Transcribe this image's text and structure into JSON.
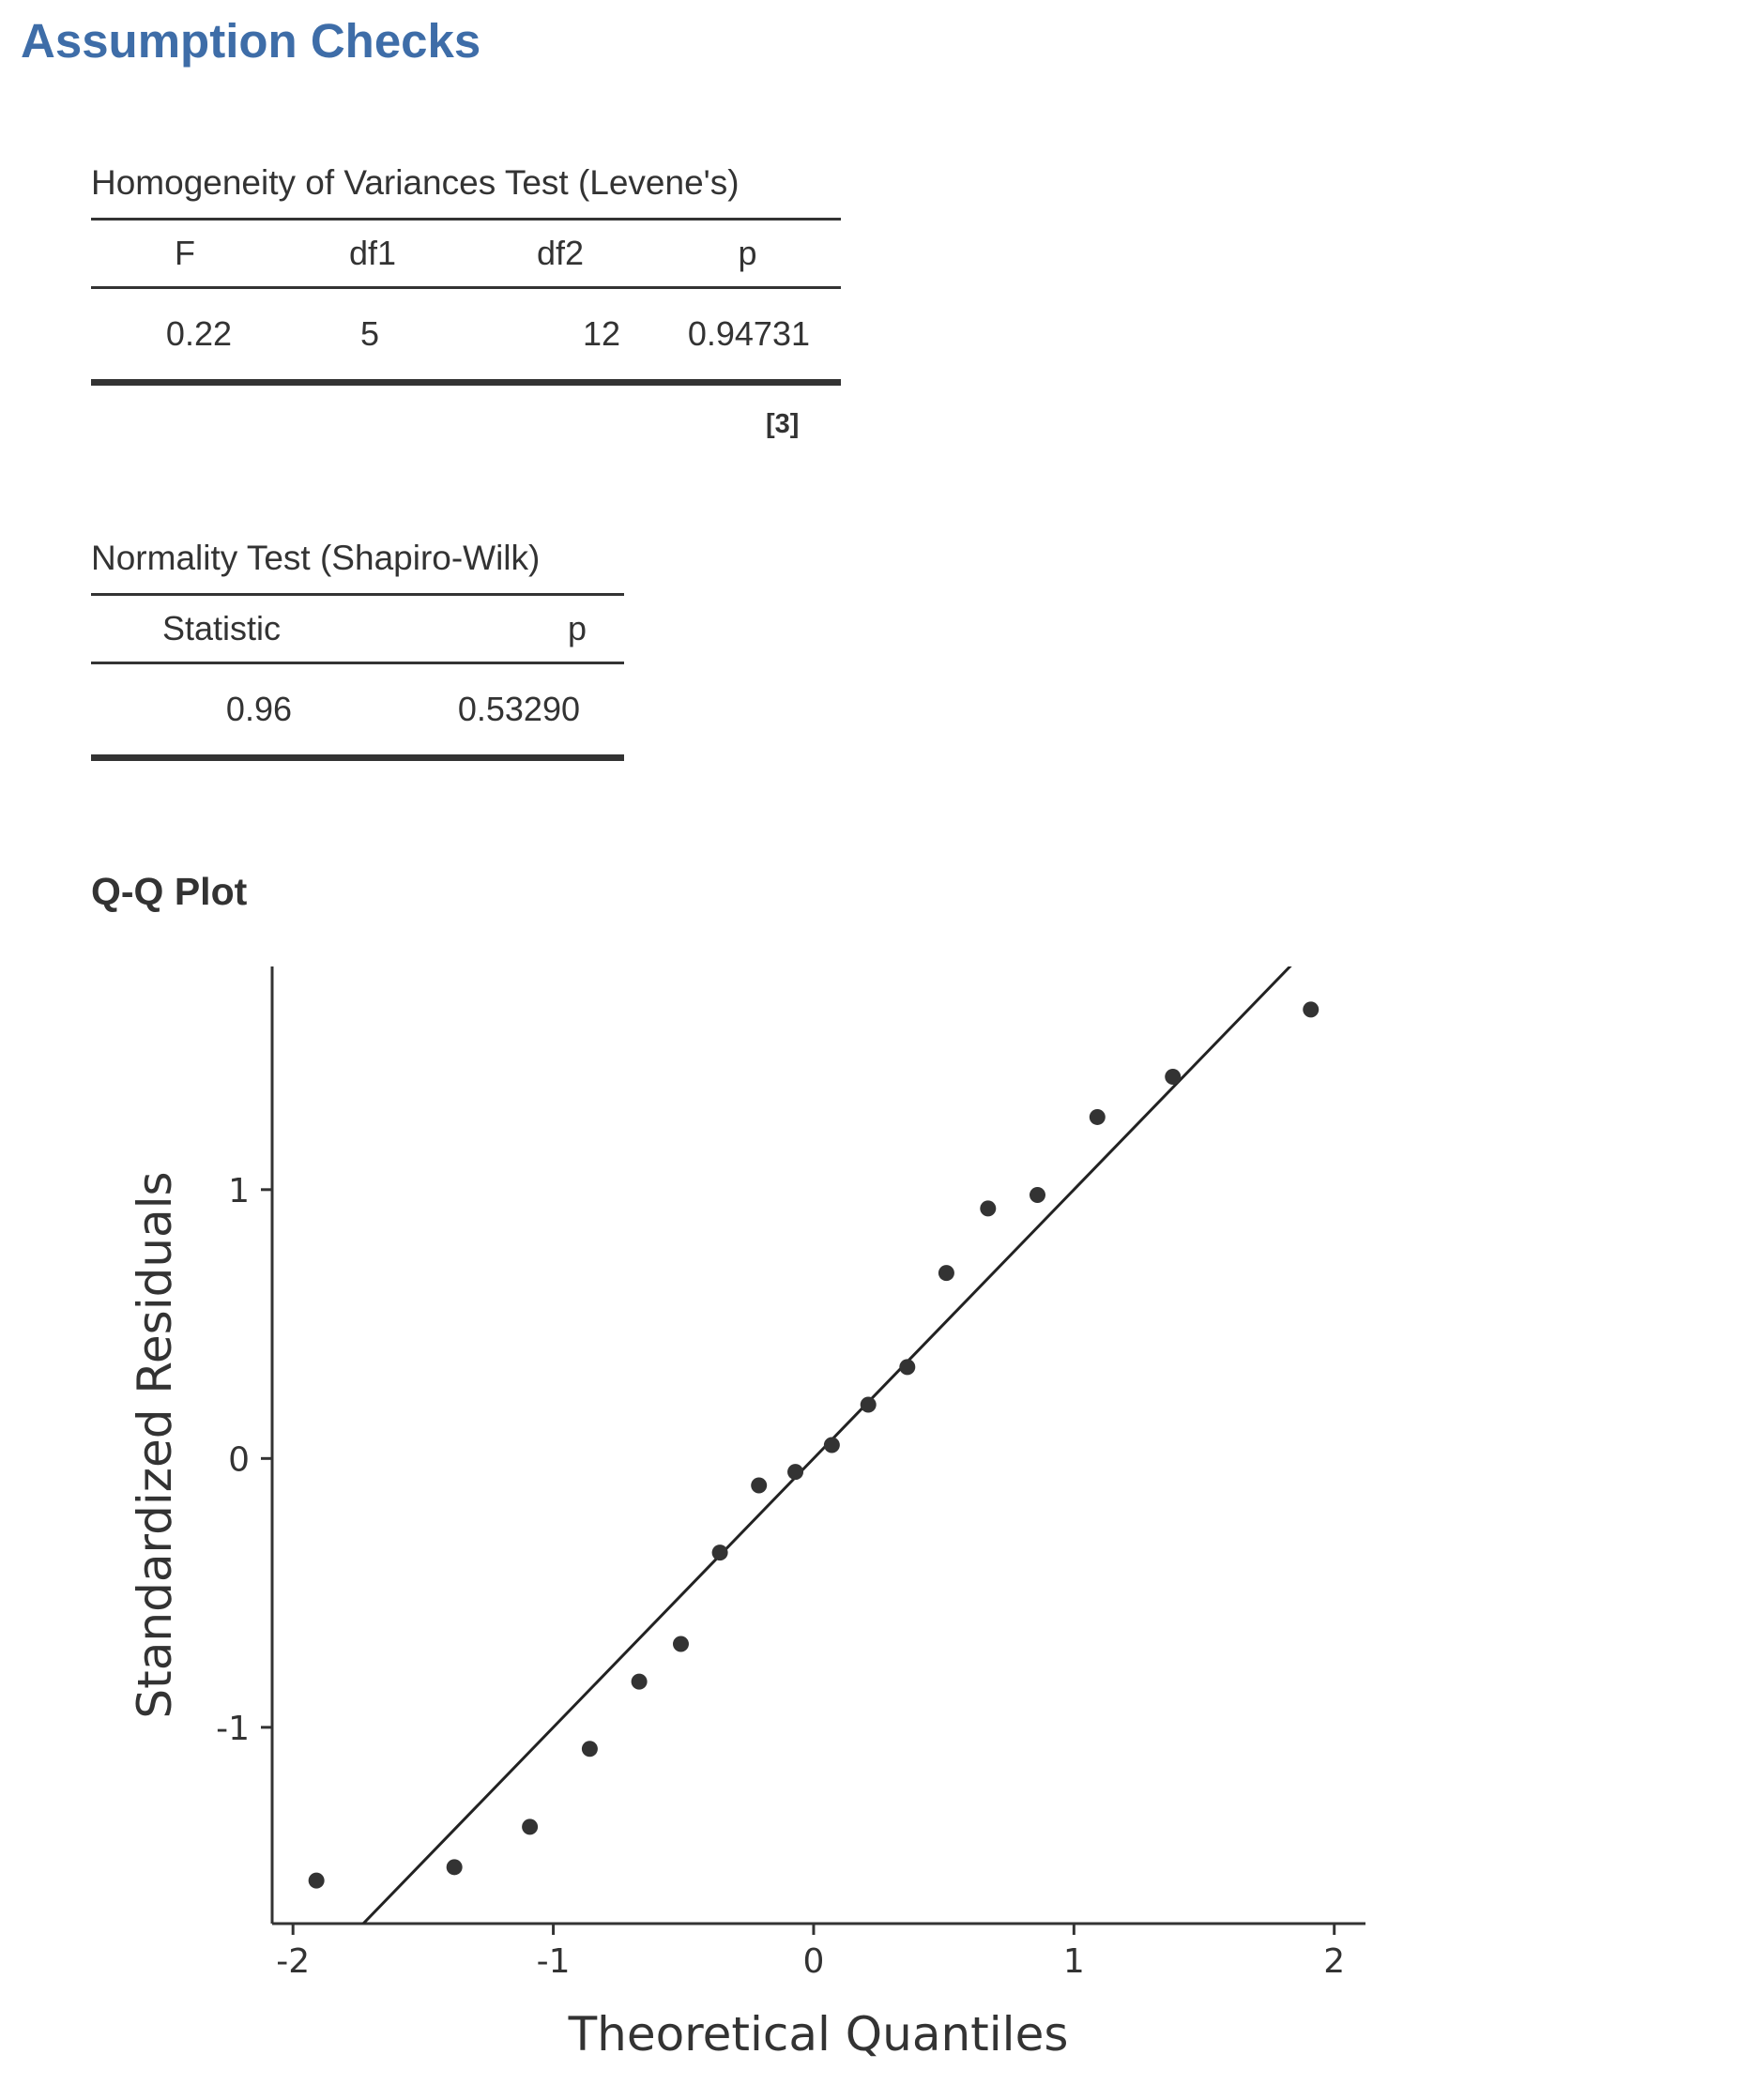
{
  "page": {
    "title": "Assumption Checks"
  },
  "levene": {
    "title": "Homogeneity of Variances Test (Levene's)",
    "columns": [
      "F",
      "df1",
      "df2",
      "p"
    ],
    "row": [
      "0.22",
      "5",
      "12",
      "0.94731"
    ],
    "footnote": "[3]"
  },
  "shapiro": {
    "title": "Normality Test (Shapiro-Wilk)",
    "columns": [
      "Statistic",
      "p"
    ],
    "row": [
      "0.96",
      "0.53290"
    ]
  },
  "qqplot": {
    "title": "Q-Q Plot"
  },
  "chart_data": {
    "type": "scatter",
    "title": "",
    "xlabel": "Theoretical Quantiles",
    "ylabel": "Standardized Residuals",
    "xlim": [
      -2.08,
      2.12
    ],
    "ylim": [
      -1.73,
      1.83
    ],
    "xticks": [
      -2,
      -1,
      0,
      1,
      2
    ],
    "xtick_labels": [
      "-2",
      "-1",
      "0",
      "1",
      "2"
    ],
    "yticks": [
      -1,
      0,
      1
    ],
    "ytick_labels": [
      "-1",
      "0",
      "1"
    ],
    "grid": false,
    "legend": "none",
    "reference_line": {
      "slope": 1.0,
      "intercept": 0.0
    },
    "points": {
      "x": [
        -1.91,
        -1.38,
        -1.09,
        -0.86,
        -0.67,
        -0.51,
        -0.36,
        -0.21,
        -0.07,
        0.07,
        0.21,
        0.36,
        0.51,
        0.67,
        0.86,
        1.09,
        1.38,
        1.91
      ],
      "y": [
        -1.57,
        -1.52,
        -1.37,
        -1.08,
        -0.83,
        -0.69,
        -0.35,
        -0.1,
        -0.05,
        0.05,
        0.2,
        0.34,
        0.69,
        0.93,
        0.98,
        1.27,
        1.42,
        1.67
      ]
    },
    "colors": {
      "points": "#333333",
      "line": "#222222",
      "axis": "#333333"
    }
  }
}
